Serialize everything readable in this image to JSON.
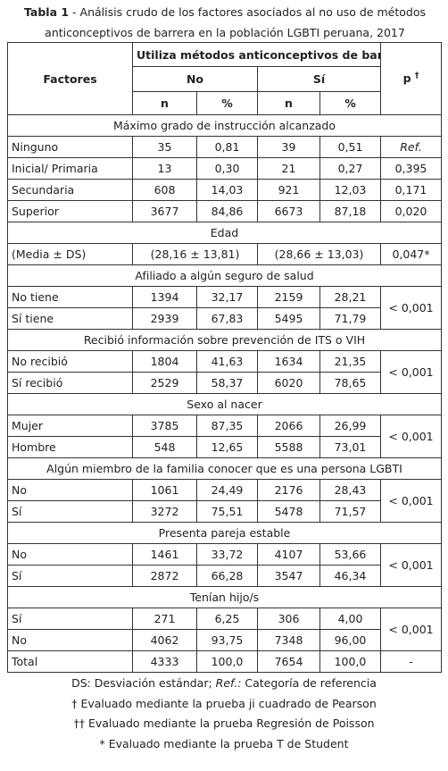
{
  "caption": {
    "label": "Tabla 1",
    "text": " - Análisis crudo de los factores asociados al no uso de métodos anticonceptivos de barrera en la población LGBTI peruana, 2017"
  },
  "table": {
    "header": {
      "factors": "Factores",
      "group": "Utiliza métodos anticonceptivos de barrera",
      "no": "No",
      "yes": "Sí",
      "n1": "n",
      "pct1": "%",
      "n2": "n",
      "pct2": "%",
      "p": "p",
      "p_mark": "†"
    },
    "sections": [
      {
        "title": "Máximo grado de instrucción alcanzado",
        "rows": [
          [
            "Ninguno",
            "35",
            "0,81",
            "39",
            "0,51",
            "Ref."
          ],
          [
            "Inicial/ Primaria",
            "13",
            "0,30",
            "21",
            "0,27",
            "0,395"
          ],
          [
            "Secundaria",
            "608",
            "14,03",
            "921",
            "12,03",
            "0,171"
          ],
          [
            "Superior",
            "3677",
            "84,86",
            "6673",
            "87,18",
            "0,020"
          ]
        ]
      },
      {
        "title": "Edad",
        "rows": [
          [
            "(Media ± DS)",
            "(28,16 ± 13,81)",
            "(28,66 ± 13,03)",
            "0,047*"
          ]
        ]
      },
      {
        "title": "Afiliado a algún seguro de salud",
        "p": "< 0,001",
        "rows": [
          [
            "No tiene",
            "1394",
            "32,17",
            "2159",
            "28,21"
          ],
          [
            "Sí tiene",
            "2939",
            "67,83",
            "5495",
            "71,79"
          ]
        ]
      },
      {
        "title": "Recibió información sobre prevención de ITS o VIH",
        "p": "< 0,001",
        "rows": [
          [
            "No recibió",
            "1804",
            "41,63",
            "1634",
            "21,35"
          ],
          [
            "Sí recibió",
            "2529",
            "58,37",
            "6020",
            "78,65"
          ]
        ]
      },
      {
        "title": "Sexo al nacer",
        "p": "< 0,001",
        "rows": [
          [
            "Mujer",
            "3785",
            "87,35",
            "2066",
            "26,99"
          ],
          [
            "Hombre",
            "548",
            "12,65",
            "5588",
            "73,01"
          ]
        ]
      },
      {
        "title": "Algún miembro de la familia conocer que es una persona LGBTI",
        "p": "< 0,001",
        "rows": [
          [
            "No",
            "1061",
            "24,49",
            "2176",
            "28,43"
          ],
          [
            "Sí",
            "3272",
            "75,51",
            "5478",
            "71,57"
          ]
        ]
      },
      {
        "title": "Presenta pareja estable",
        "p": "< 0,001",
        "rows": [
          [
            "No",
            "1461",
            "33,72",
            "4107",
            "53,66"
          ],
          [
            "Sí",
            "2872",
            "66,28",
            "3547",
            "46,34"
          ]
        ]
      },
      {
        "title": "Tenían hijo/s",
        "p": "< 0,001",
        "rows": [
          [
            "Sí",
            "271",
            "6,25",
            "306",
            "4,00"
          ],
          [
            "No",
            "4062",
            "93,75",
            "7348",
            "96,00"
          ],
          [
            "Total",
            "4333",
            "100,0",
            "7654",
            "100,0",
            "-"
          ]
        ]
      }
    ]
  },
  "footnotes": {
    "ds": "DS: Desviación estándar; ",
    "ref": "Ref.:",
    "ref_text": " Categoría de referencia",
    "lines": [
      "† Evaluado mediante la prueba ji cuadrado de Pearson",
      "†† Evaluado mediante la prueba Regresión de Poisson",
      "* Evaluado mediante la prueba T de Student"
    ]
  }
}
